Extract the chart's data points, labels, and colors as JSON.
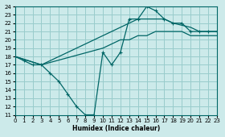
{
  "xlabel": "Humidex (Indice chaleur)",
  "bg_color": "#cceaea",
  "grid_color": "#99cccc",
  "line_color": "#006666",
  "xmin": 0,
  "xmax": 23,
  "ymin": 11,
  "ymax": 24,
  "line1_x": [
    0,
    1,
    2,
    3,
    4,
    5,
    6,
    7,
    8,
    9,
    10,
    11,
    12,
    13,
    14,
    15,
    16,
    17,
    18,
    19,
    20,
    21,
    22,
    23
  ],
  "line1_y": [
    18,
    17.5,
    17,
    17,
    16,
    15,
    13.5,
    12,
    11,
    11,
    18.5,
    17,
    18.5,
    22.5,
    22.5,
    24,
    23.5,
    22.5,
    22,
    22,
    21,
    21,
    21,
    21
  ],
  "line2_x": [
    0,
    3,
    14,
    17,
    18,
    20,
    21,
    22,
    23
  ],
  "line2_y": [
    18,
    17,
    22.5,
    22.5,
    22,
    21.5,
    21,
    21,
    21
  ],
  "line3_x": [
    0,
    3,
    10,
    11,
    12,
    13,
    14,
    15,
    16,
    17,
    18,
    19,
    20,
    21,
    22,
    23
  ],
  "line3_y": [
    18,
    17,
    19,
    19.5,
    20,
    20,
    20.5,
    20.5,
    21,
    21,
    21,
    21,
    20.5,
    20.5,
    20.5,
    20.5
  ],
  "marker": "+"
}
